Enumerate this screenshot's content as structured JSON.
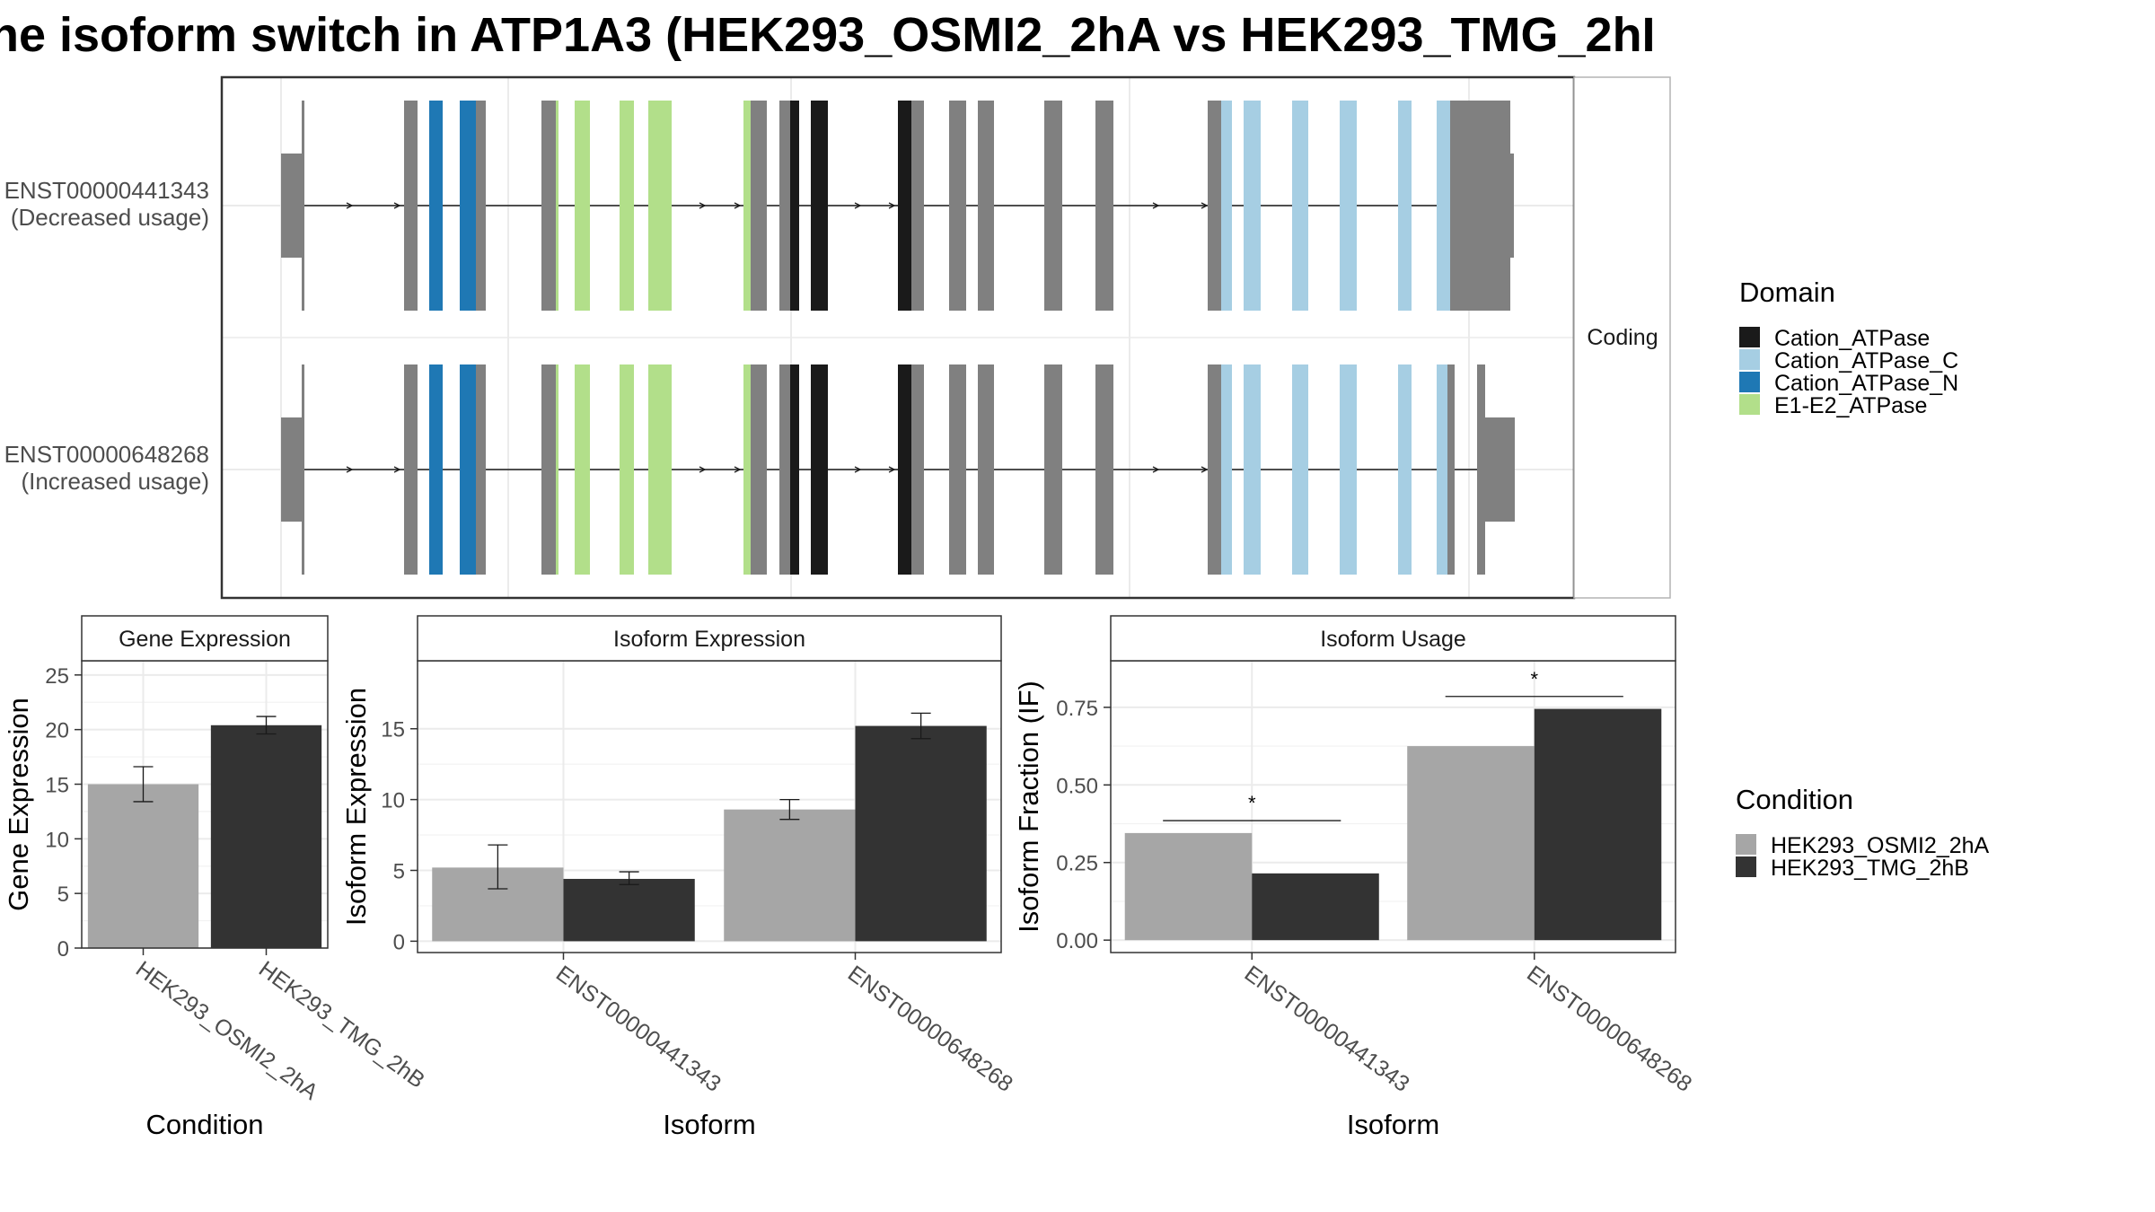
{
  "title": "he isoform switch in ATP1A3 (HEK293_OSMI2_2hA vs HEK293_TMG_2hI",
  "colors": {
    "intron": "#1a1a1a",
    "exon_none": "#808080",
    "Cation_ATPase": "#1a1a1a",
    "Cation_ATPase_C": "#a6cee3",
    "Cation_ATPase_N": "#1f78b4",
    "E1-E2_ATPase": "#b2df8a",
    "cond_A": "#a6a6a6",
    "cond_B": "#333333",
    "grid": "#ebebeb",
    "strip_bg": "#ffffff"
  },
  "structure": {
    "strip_label": "Coding",
    "transcripts": [
      {
        "id": "ENST00000441343",
        "note": "(Decreased usage)"
      },
      {
        "id": "ENST00000648268",
        "note": "(Increased usage)"
      }
    ]
  },
  "legend_domain": {
    "title": "Domain",
    "items": [
      {
        "label": "Cation_ATPase",
        "color": "#1a1a1a"
      },
      {
        "label": "Cation_ATPase_C",
        "color": "#a6cee3"
      },
      {
        "label": "Cation_ATPase_N",
        "color": "#1f78b4"
      },
      {
        "label": "E1-E2_ATPase",
        "color": "#b2df8a"
      }
    ]
  },
  "legend_condition": {
    "title": "Condition",
    "items": [
      {
        "label": "HEK293_OSMI2_2hA",
        "color": "#a6a6a6"
      },
      {
        "label": "HEK293_TMG_2hB",
        "color": "#333333"
      }
    ]
  },
  "chart_data": [
    {
      "type": "bar",
      "title": "Gene Expression",
      "xlabel": "Condition",
      "ylabel": "Gene Expression",
      "categories": [
        "HEK293_OSMI2_2hA",
        "HEK293_TMG_2hB"
      ],
      "values": [
        15.0,
        20.4
      ],
      "errors": [
        [
          13.4,
          16.6
        ],
        [
          19.6,
          21.2
        ]
      ],
      "ylim": [
        0,
        26.3
      ],
      "yticks": [
        0,
        5,
        10,
        15,
        20,
        25
      ],
      "ytick_labels": [
        "0",
        "5",
        "10",
        "15",
        "20",
        "25"
      ]
    },
    {
      "type": "bar",
      "title": "Isoform Expression",
      "xlabel": "Isoform",
      "ylabel": "Isoform Expression",
      "categories": [
        "ENST00000441343",
        "ENST00000648268"
      ],
      "series": [
        {
          "name": "HEK293_OSMI2_2hA",
          "values": [
            5.2,
            9.3
          ],
          "errors": [
            [
              3.7,
              6.8
            ],
            [
              8.6,
              10.0
            ]
          ]
        },
        {
          "name": "HEK293_TMG_2hB",
          "values": [
            4.4,
            15.2
          ],
          "errors": [
            [
              4.0,
              4.9
            ],
            [
              14.3,
              16.1
            ]
          ]
        }
      ],
      "ylim": [
        -0.8,
        19.8
      ],
      "yticks": [
        0,
        5,
        10,
        15
      ],
      "ytick_labels": [
        "0",
        "5",
        "10",
        "15"
      ]
    },
    {
      "type": "bar",
      "title": "Isoform Usage",
      "xlabel": "Isoform",
      "ylabel": "Isoform Fraction (IF)",
      "categories": [
        "ENST00000441343",
        "ENST00000648268"
      ],
      "series": [
        {
          "name": "HEK293_OSMI2_2hA",
          "values": [
            0.345,
            0.625
          ]
        },
        {
          "name": "HEK293_TMG_2hB",
          "values": [
            0.215,
            0.745
          ]
        }
      ],
      "significance": [
        {
          "category": "ENST00000441343",
          "label": "*",
          "y": 0.385
        },
        {
          "category": "ENST00000648268",
          "label": "*",
          "y": 0.785
        }
      ],
      "ylim": [
        -0.04,
        0.9
      ],
      "yticks": [
        0,
        0.25,
        0.5,
        0.75
      ],
      "ytick_labels": [
        "0.00",
        "0.25",
        "0.50",
        "0.75"
      ]
    }
  ]
}
